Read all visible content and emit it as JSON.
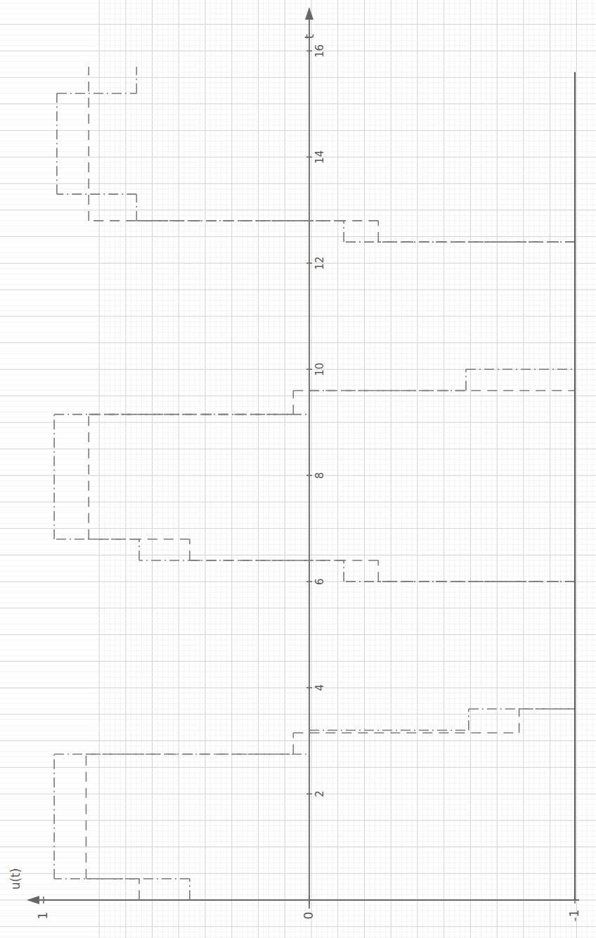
{
  "chart_data": {
    "type": "step",
    "x_label": "t",
    "y_label": "u(t)",
    "xlim": [
      0,
      16.8
    ],
    "xticks": [
      2,
      4,
      6,
      8,
      10,
      12,
      14,
      16
    ],
    "ylim": [
      -1,
      1
    ],
    "yticks": [
      -1,
      0,
      1
    ],
    "grid": true,
    "series": [
      {
        "color": "#7a7a7a",
        "line_style": "dashed",
        "x": [
          0,
          0.4,
          2.75,
          3.15,
          3.6,
          6.0,
          6.4,
          6.8,
          9.15,
          9.6,
          12.4,
          12.8,
          15.7
        ],
        "values": [
          0.64,
          0.84,
          0.06,
          -0.79,
          -1,
          -0.26,
          0.45,
          0.83,
          0.06,
          -1,
          -0.26,
          0.83,
          0.83
        ]
      },
      {
        "color": "#7a7a7a",
        "line_style": "dashdot",
        "x": [
          0,
          0.4,
          2.75,
          3.2,
          3.6,
          6.0,
          6.4,
          6.8,
          9.15,
          9.6,
          10.0,
          12.4,
          12.8,
          13.3,
          15.2,
          15.7
        ],
        "values": [
          0.45,
          0.96,
          0.0,
          -0.6,
          -1,
          -0.13,
          0.64,
          0.96,
          0.0,
          -0.59,
          -1,
          -0.13,
          0.65,
          0.95,
          0.65,
          0.65
        ]
      },
      {
        "color": "#555555",
        "line_style": "solid",
        "x": [
          0,
          15.6
        ],
        "values": [
          -1,
          -1
        ]
      }
    ]
  }
}
